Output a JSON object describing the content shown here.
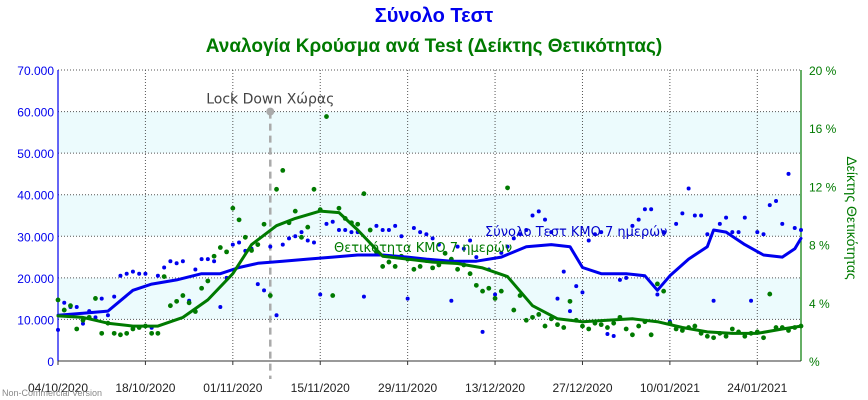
{
  "chart_data": {
    "type": "line",
    "title": "Σύνολο Τεστ",
    "subtitle": "Αναλογία Κρούσμα ανά Test (Δείκτης Θετικότητας)",
    "ylabel": "",
    "y2label": "Δείκτης Θετικότητας",
    "x_ticks": [
      "04/10/2020",
      "18/10/2020",
      "01/11/2020",
      "15/11/2020",
      "29/11/2020",
      "13/12/2020",
      "27/12/2020",
      "10/01/2021",
      "24/01/2021"
    ],
    "y_ticks": [
      "0",
      "10.000",
      "20.000",
      "30.000",
      "40.000",
      "50.000",
      "60.000",
      "70.000"
    ],
    "y2_ticks": [
      "%",
      "4 %",
      "8 %",
      "12 %",
      "16 %",
      "20 %"
    ],
    "ylim": [
      0,
      70000
    ],
    "y2lim": [
      0,
      20
    ],
    "xlim": [
      "2020-10-04",
      "2021-01-31"
    ],
    "grid": true,
    "colors": {
      "tests": "#0000ee",
      "positivity": "#007a00",
      "title": "#0000ee",
      "subtitle": "#007a00",
      "annotation": "#aaaaaa",
      "band": "#ecfbfd"
    },
    "annotation": {
      "label": "Lock Down Χώρας",
      "date": "2020-11-07",
      "value": 60000
    },
    "series": [
      {
        "name": "Σύνολο Τεστ ΚΜΟ 7 ημερών",
        "axis": "left",
        "points": [
          [
            "2020-10-04",
            11000
          ],
          [
            "2020-10-08",
            11500
          ],
          [
            "2020-10-12",
            12000
          ],
          [
            "2020-10-16",
            17000
          ],
          [
            "2020-10-19",
            18500
          ],
          [
            "2020-10-23",
            19500
          ],
          [
            "2020-10-27",
            21000
          ],
          [
            "2020-10-30",
            21000
          ],
          [
            "2020-11-02",
            22500
          ],
          [
            "2020-11-05",
            23500
          ],
          [
            "2020-11-09",
            24000
          ],
          [
            "2020-11-13",
            24500
          ],
          [
            "2020-11-17",
            25000
          ],
          [
            "2020-11-21",
            25500
          ],
          [
            "2020-11-25",
            25500
          ],
          [
            "2020-11-29",
            25000
          ],
          [
            "2020-12-02",
            24500
          ],
          [
            "2020-12-06",
            24000
          ],
          [
            "2020-12-10",
            24000
          ],
          [
            "2020-12-14",
            25000
          ],
          [
            "2020-12-18",
            27500
          ],
          [
            "2020-12-22",
            28000
          ],
          [
            "2020-12-25",
            27500
          ],
          [
            "2020-12-27",
            22500
          ],
          [
            "2020-12-30",
            21000
          ],
          [
            "2021-01-03",
            21000
          ],
          [
            "2021-01-06",
            20500
          ],
          [
            "2021-01-08",
            17000
          ],
          [
            "2021-01-10",
            20500
          ],
          [
            "2021-01-13",
            24500
          ],
          [
            "2021-01-16",
            27500
          ],
          [
            "2021-01-17",
            31500
          ],
          [
            "2021-01-19",
            31000
          ],
          [
            "2021-01-22",
            28000
          ],
          [
            "2021-01-25",
            25500
          ],
          [
            "2021-01-28",
            25000
          ],
          [
            "2021-01-30",
            27000
          ],
          [
            "2021-01-31",
            29500
          ]
        ]
      },
      {
        "name": "Θετικότητα ΚΜΟ 7 ημερών",
        "axis": "right",
        "points": [
          [
            "2020-10-04",
            3.1
          ],
          [
            "2020-10-08",
            3.0
          ],
          [
            "2020-10-12",
            2.6
          ],
          [
            "2020-10-16",
            2.4
          ],
          [
            "2020-10-20",
            2.4
          ],
          [
            "2020-10-24",
            3.0
          ],
          [
            "2020-10-28",
            4.2
          ],
          [
            "2020-11-01",
            6.0
          ],
          [
            "2020-11-04",
            8.0
          ],
          [
            "2020-11-08",
            9.3
          ],
          [
            "2020-11-11",
            9.8
          ],
          [
            "2020-11-15",
            10.3
          ],
          [
            "2020-11-18",
            10.2
          ],
          [
            "2020-11-21",
            9.0
          ],
          [
            "2020-11-25",
            7.2
          ],
          [
            "2020-11-29",
            7.0
          ],
          [
            "2020-12-03",
            6.8
          ],
          [
            "2020-12-07",
            6.7
          ],
          [
            "2020-12-11",
            6.4
          ],
          [
            "2020-12-15",
            5.8
          ],
          [
            "2020-12-19",
            3.8
          ],
          [
            "2020-12-23",
            2.9
          ],
          [
            "2020-12-27",
            2.7
          ],
          [
            "2020-12-31",
            2.8
          ],
          [
            "2021-01-04",
            2.9
          ],
          [
            "2021-01-08",
            2.7
          ],
          [
            "2021-01-12",
            2.3
          ],
          [
            "2021-01-16",
            2.0
          ],
          [
            "2021-01-20",
            1.9
          ],
          [
            "2021-01-24",
            1.9
          ],
          [
            "2021-01-28",
            2.2
          ],
          [
            "2021-01-31",
            2.4
          ]
        ]
      }
    ],
    "scatter_tests": [
      [
        "2020-10-04",
        7500
      ],
      [
        "2020-10-05",
        14000
      ],
      [
        "2020-10-06",
        13000
      ],
      [
        "2020-10-07",
        13000
      ],
      [
        "2020-10-08",
        9000
      ],
      [
        "2020-10-09",
        12000
      ],
      [
        "2020-10-10",
        10500
      ],
      [
        "2020-10-11",
        15000
      ],
      [
        "2020-10-12",
        11000
      ],
      [
        "2020-10-13",
        15500
      ],
      [
        "2020-10-14",
        20500
      ],
      [
        "2020-10-15",
        21000
      ],
      [
        "2020-10-16",
        21500
      ],
      [
        "2020-10-17",
        21000
      ],
      [
        "2020-10-18",
        21000
      ],
      [
        "2020-10-19",
        8000
      ],
      [
        "2020-10-20",
        20500
      ],
      [
        "2020-10-21",
        22500
      ],
      [
        "2020-10-22",
        24000
      ],
      [
        "2020-10-23",
        23500
      ],
      [
        "2020-10-24",
        24000
      ],
      [
        "2020-10-25",
        14500
      ],
      [
        "2020-10-26",
        22000
      ],
      [
        "2020-10-27",
        24500
      ],
      [
        "2020-10-28",
        24500
      ],
      [
        "2020-10-29",
        24000
      ],
      [
        "2020-10-30",
        13000
      ],
      [
        "2020-10-31",
        20000
      ],
      [
        "2020-11-01",
        28000
      ],
      [
        "2020-11-02",
        28500
      ],
      [
        "2020-11-03",
        26500
      ],
      [
        "2020-11-04",
        27000
      ],
      [
        "2020-11-05",
        18500
      ],
      [
        "2020-11-06",
        17000
      ],
      [
        "2020-11-07",
        27500
      ],
      [
        "2020-11-08",
        11000
      ],
      [
        "2020-11-09",
        28000
      ],
      [
        "2020-11-10",
        29500
      ],
      [
        "2020-11-11",
        30000
      ],
      [
        "2020-11-12",
        31000
      ],
      [
        "2020-11-13",
        29000
      ],
      [
        "2020-11-14",
        28500
      ],
      [
        "2020-11-15",
        16000
      ],
      [
        "2020-11-16",
        33000
      ],
      [
        "2020-11-17",
        33500
      ],
      [
        "2020-11-18",
        31500
      ],
      [
        "2020-11-19",
        31500
      ],
      [
        "2020-11-20",
        31000
      ],
      [
        "2020-11-21",
        31000
      ],
      [
        "2020-11-22",
        15500
      ],
      [
        "2020-11-23",
        31500
      ],
      [
        "2020-11-24",
        32500
      ],
      [
        "2020-11-25",
        31500
      ],
      [
        "2020-11-26",
        31500
      ],
      [
        "2020-11-27",
        32500
      ],
      [
        "2020-11-28",
        30000
      ],
      [
        "2020-11-29",
        15000
      ],
      [
        "2020-11-30",
        32000
      ],
      [
        "2020-12-01",
        31000
      ],
      [
        "2020-12-02",
        30500
      ],
      [
        "2020-12-03",
        29500
      ],
      [
        "2020-12-04",
        28000
      ],
      [
        "2020-12-05",
        26000
      ],
      [
        "2020-12-06",
        14500
      ],
      [
        "2020-12-07",
        27500
      ],
      [
        "2020-12-08",
        27000
      ],
      [
        "2020-12-09",
        29000
      ],
      [
        "2020-12-10",
        25000
      ],
      [
        "2020-12-11",
        7000
      ],
      [
        "2020-12-12",
        22000
      ],
      [
        "2020-12-13",
        16000
      ],
      [
        "2020-12-14",
        26000
      ],
      [
        "2020-12-15",
        27500
      ],
      [
        "2020-12-16",
        29500
      ],
      [
        "2020-12-17",
        30500
      ],
      [
        "2020-12-18",
        31500
      ],
      [
        "2020-12-19",
        35000
      ],
      [
        "2020-12-20",
        36000
      ],
      [
        "2020-12-21",
        34000
      ],
      [
        "2020-12-22",
        31000
      ],
      [
        "2020-12-23",
        15000
      ],
      [
        "2020-12-24",
        21500
      ],
      [
        "2020-12-25",
        12000
      ],
      [
        "2020-12-26",
        18000
      ],
      [
        "2020-12-27",
        16500
      ],
      [
        "2020-12-28",
        29000
      ],
      [
        "2020-12-29",
        30500
      ],
      [
        "2020-12-30",
        31000
      ],
      [
        "2020-12-31",
        6500
      ],
      [
        "2021-01-01",
        6000
      ],
      [
        "2021-01-02",
        19500
      ],
      [
        "2021-01-03",
        20000
      ],
      [
        "2021-01-04",
        32500
      ],
      [
        "2021-01-05",
        34000
      ],
      [
        "2021-01-06",
        36500
      ],
      [
        "2021-01-07",
        36500
      ],
      [
        "2021-01-08",
        16000
      ],
      [
        "2021-01-09",
        31000
      ],
      [
        "2021-01-10",
        9500
      ],
      [
        "2021-01-11",
        33000
      ],
      [
        "2021-01-12",
        35500
      ],
      [
        "2021-01-13",
        41500
      ],
      [
        "2021-01-14",
        35000
      ],
      [
        "2021-01-15",
        35000
      ],
      [
        "2021-01-16",
        30500
      ],
      [
        "2021-01-17",
        14500
      ],
      [
        "2021-01-18",
        33000
      ],
      [
        "2021-01-19",
        34500
      ],
      [
        "2021-01-20",
        31000
      ],
      [
        "2021-01-21",
        31000
      ],
      [
        "2021-01-22",
        34500
      ],
      [
        "2021-01-23",
        14500
      ],
      [
        "2021-01-24",
        31000
      ],
      [
        "2021-01-25",
        30500
      ],
      [
        "2021-01-26",
        37500
      ],
      [
        "2021-01-27",
        38500
      ],
      [
        "2021-01-28",
        33000
      ],
      [
        "2021-01-29",
        45000
      ],
      [
        "2021-01-30",
        32000
      ],
      [
        "2021-01-31",
        31500
      ]
    ],
    "scatter_positivity": [
      [
        "2020-10-04",
        4.2
      ],
      [
        "2020-10-05",
        3.5
      ],
      [
        "2020-10-06",
        3.8
      ],
      [
        "2020-10-07",
        2.2
      ],
      [
        "2020-10-08",
        2.8
      ],
      [
        "2020-10-09",
        3.0
      ],
      [
        "2020-10-10",
        4.3
      ],
      [
        "2020-10-11",
        1.9
      ],
      [
        "2020-10-12",
        2.6
      ],
      [
        "2020-10-13",
        1.9
      ],
      [
        "2020-10-14",
        1.8
      ],
      [
        "2020-10-15",
        1.9
      ],
      [
        "2020-10-16",
        2.2
      ],
      [
        "2020-10-17",
        2.3
      ],
      [
        "2020-10-18",
        2.4
      ],
      [
        "2020-10-19",
        1.9
      ],
      [
        "2020-10-20",
        1.9
      ],
      [
        "2020-10-21",
        5.8
      ],
      [
        "2020-10-22",
        3.8
      ],
      [
        "2020-10-23",
        4.1
      ],
      [
        "2020-10-24",
        4.5
      ],
      [
        "2020-10-25",
        4.0
      ],
      [
        "2020-10-26",
        3.4
      ],
      [
        "2020-10-27",
        5.0
      ],
      [
        "2020-10-28",
        5.5
      ],
      [
        "2020-10-29",
        7.2
      ],
      [
        "2020-10-30",
        7.8
      ],
      [
        "2020-10-31",
        7.5
      ],
      [
        "2020-11-01",
        10.5
      ],
      [
        "2020-11-02",
        9.7
      ],
      [
        "2020-11-03",
        8.5
      ],
      [
        "2020-11-04",
        7.6
      ],
      [
        "2020-11-05",
        8.0
      ],
      [
        "2020-11-06",
        9.4
      ],
      [
        "2020-11-07",
        4.5
      ],
      [
        "2020-11-08",
        11.8
      ],
      [
        "2020-11-09",
        13.1
      ],
      [
        "2020-11-10",
        9.5
      ],
      [
        "2020-11-11",
        10.3
      ],
      [
        "2020-11-12",
        8.5
      ],
      [
        "2020-11-13",
        9.2
      ],
      [
        "2020-11-14",
        11.8
      ],
      [
        "2020-11-15",
        10.4
      ],
      [
        "2020-11-16",
        16.8
      ],
      [
        "2020-11-17",
        4.5
      ],
      [
        "2020-11-18",
        10.5
      ],
      [
        "2020-11-19",
        9.8
      ],
      [
        "2020-11-20",
        9.5
      ],
      [
        "2020-11-21",
        9.4
      ],
      [
        "2020-11-22",
        11.5
      ],
      [
        "2020-11-23",
        9.0
      ],
      [
        "2020-11-24",
        7.5
      ],
      [
        "2020-11-25",
        6.5
      ],
      [
        "2020-11-26",
        6.8
      ],
      [
        "2020-11-27",
        6.5
      ],
      [
        "2020-11-28",
        7.2
      ],
      [
        "2020-11-29",
        7.0
      ],
      [
        "2020-11-30",
        6.3
      ],
      [
        "2020-12-01",
        6.5
      ],
      [
        "2020-12-02",
        6.9
      ],
      [
        "2020-12-03",
        6.4
      ],
      [
        "2020-12-04",
        6.6
      ],
      [
        "2020-12-05",
        7.4
      ],
      [
        "2020-12-06",
        7.0
      ],
      [
        "2020-12-07",
        6.3
      ],
      [
        "2020-12-08",
        6.6
      ],
      [
        "2020-12-09",
        6.0
      ],
      [
        "2020-12-10",
        5.2
      ],
      [
        "2020-12-11",
        4.8
      ],
      [
        "2020-12-12",
        5.0
      ],
      [
        "2020-12-13",
        4.3
      ],
      [
        "2020-12-14",
        4.8
      ],
      [
        "2020-12-15",
        11.9
      ],
      [
        "2020-12-16",
        3.5
      ],
      [
        "2020-12-17",
        4.5
      ],
      [
        "2020-12-18",
        2.8
      ],
      [
        "2020-12-19",
        3.0
      ],
      [
        "2020-12-20",
        3.2
      ],
      [
        "2020-12-21",
        2.4
      ],
      [
        "2020-12-22",
        2.9
      ],
      [
        "2020-12-23",
        2.5
      ],
      [
        "2020-12-24",
        2.3
      ],
      [
        "2020-12-25",
        4.1
      ],
      [
        "2020-12-26",
        2.8
      ],
      [
        "2020-12-27",
        2.4
      ],
      [
        "2020-12-28",
        2.2
      ],
      [
        "2020-12-29",
        2.6
      ],
      [
        "2020-12-30",
        2.5
      ],
      [
        "2020-12-31",
        2.3
      ],
      [
        "2021-01-01",
        2.6
      ],
      [
        "2021-01-02",
        3.0
      ],
      [
        "2021-01-03",
        2.2
      ],
      [
        "2021-01-04",
        1.8
      ],
      [
        "2021-01-05",
        2.4
      ],
      [
        "2021-01-06",
        2.7
      ],
      [
        "2021-01-07",
        1.8
      ],
      [
        "2021-01-08",
        5.3
      ],
      [
        "2021-01-09",
        4.8
      ],
      [
        "2021-01-10",
        2.6
      ],
      [
        "2021-01-11",
        2.2
      ],
      [
        "2021-01-12",
        2.1
      ],
      [
        "2021-01-13",
        2.3
      ],
      [
        "2021-01-14",
        2.4
      ],
      [
        "2021-01-15",
        1.9
      ],
      [
        "2021-01-16",
        1.7
      ],
      [
        "2021-01-17",
        1.6
      ],
      [
        "2021-01-18",
        1.9
      ],
      [
        "2021-01-19",
        1.7
      ],
      [
        "2021-01-20",
        2.2
      ],
      [
        "2021-01-21",
        2.0
      ],
      [
        "2021-01-22",
        1.7
      ],
      [
        "2021-01-23",
        1.9
      ],
      [
        "2021-01-24",
        2.0
      ],
      [
        "2021-01-25",
        1.6
      ],
      [
        "2021-01-26",
        4.6
      ],
      [
        "2021-01-27",
        2.3
      ],
      [
        "2021-01-28",
        2.3
      ],
      [
        "2021-01-29",
        2.1
      ],
      [
        "2021-01-30",
        2.3
      ],
      [
        "2021-01-31",
        2.4
      ]
    ]
  },
  "footer": {
    "credit": "Non-Commercial Version"
  }
}
